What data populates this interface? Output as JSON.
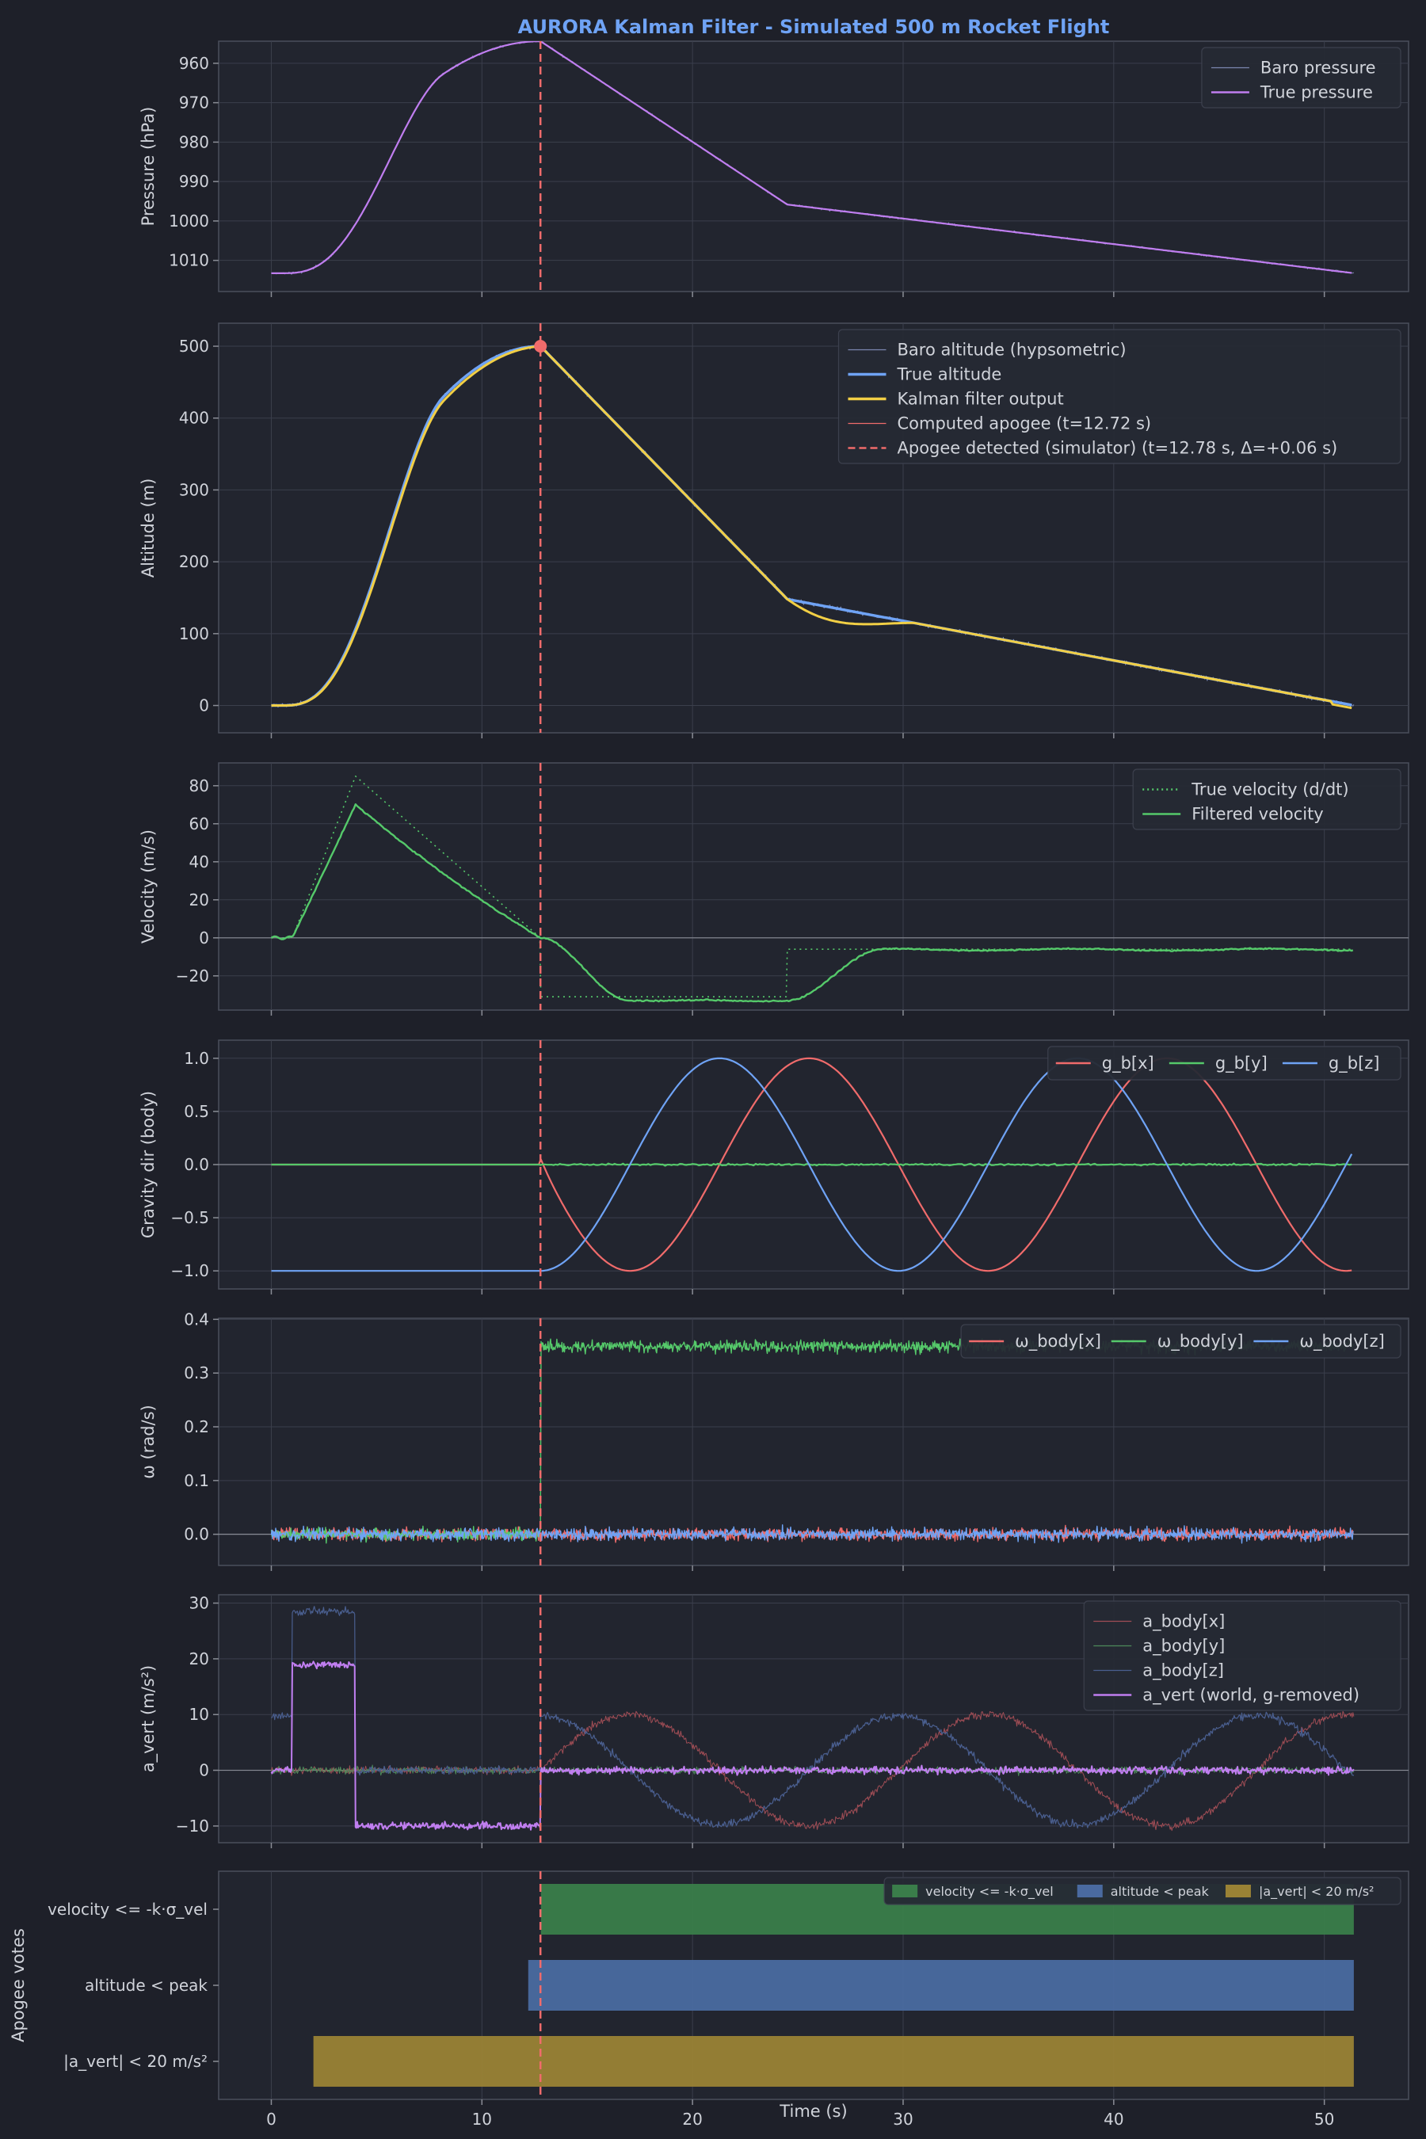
{
  "colors": {
    "bg": "#1e2029",
    "panel": "#242833",
    "grid": "#3b3f4c",
    "spine": "#4a4f5c",
    "text": "#d0d3da",
    "title": "#6fa3f5",
    "apogee": "#f06b6b"
  },
  "chart_data": {
    "title": "AURORA Kalman Filter - Simulated 500 m Rocket Flight",
    "xlabel": "Time (s)",
    "xlim": [
      -2.5,
      54
    ],
    "xticks": [
      0,
      10,
      20,
      30,
      40,
      50
    ],
    "apogee_t": 12.78,
    "panels": [
      {
        "id": "pressure",
        "type": "line",
        "ylabel": "Pressure (hPa)",
        "ylim": [
          1017.9,
          954.4
        ],
        "yticks": [
          960,
          970,
          980,
          990,
          1000,
          1010
        ],
        "legend": [
          {
            "label": "Baro pressure",
            "color": "#7b87b0",
            "style": "thin"
          },
          {
            "label": "True pressure",
            "color": "#c07ef0",
            "style": "solid"
          }
        ]
      },
      {
        "id": "altitude",
        "type": "line",
        "ylabel": "Altitude (m)",
        "ylim": [
          -38,
          532
        ],
        "yticks": [
          0,
          100,
          200,
          300,
          400,
          500
        ],
        "legend": [
          {
            "label": "Baro altitude (hypsometric)",
            "color": "#7b87b0",
            "style": "thin"
          },
          {
            "label": "True altitude",
            "color": "#6fa3f5",
            "style": "thick"
          },
          {
            "label": "Kalman filter output",
            "color": "#f2cf45",
            "style": "thick"
          },
          {
            "label": "Computed apogee (t=12.72 s)",
            "color": "#f06b6b",
            "style": "thin"
          },
          {
            "label": "Apogee detected (simulator) (t=12.78 s, Δ=+0.06 s)",
            "color": "#f06b6b",
            "style": "dash"
          }
        ]
      },
      {
        "id": "velocity",
        "type": "line",
        "ylabel": "Velocity (m/s)",
        "ylim": [
          -38,
          92
        ],
        "yticks": [
          -20,
          0,
          20,
          40,
          60,
          80
        ],
        "legend": [
          {
            "label": "True velocity (d/dt)",
            "color": "#55c96a",
            "style": "dot"
          },
          {
            "label": "Filtered velocity",
            "color": "#55c96a",
            "style": "solid"
          }
        ]
      },
      {
        "id": "gravity",
        "type": "line",
        "ylabel": "Gravity dir (body)",
        "ylim": [
          -1.17,
          1.17
        ],
        "yticks": [
          -1.0,
          -0.5,
          0.0,
          0.5,
          1.0
        ],
        "legend": [
          {
            "label": "g_b[x]",
            "color": "#f06b6b",
            "style": "solid"
          },
          {
            "label": "g_b[y]",
            "color": "#55c96a",
            "style": "solid"
          },
          {
            "label": "g_b[z]",
            "color": "#6fa3f5",
            "style": "solid"
          }
        ]
      },
      {
        "id": "omega",
        "type": "line",
        "ylabel": "ω (rad/s)",
        "ylim": [
          -0.058,
          0.402
        ],
        "yticks": [
          0.0,
          0.1,
          0.2,
          0.3,
          0.4
        ],
        "legend": [
          {
            "label": "ω_body[x]",
            "color": "#f06b6b",
            "style": "solid"
          },
          {
            "label": "ω_body[y]",
            "color": "#55c96a",
            "style": "solid"
          },
          {
            "label": "ω_body[z]",
            "color": "#6fa3f5",
            "style": "solid"
          }
        ]
      },
      {
        "id": "accel",
        "type": "line",
        "ylabel": "a_vert (m/s²)",
        "ylim": [
          -13,
          31.5
        ],
        "yticks": [
          -10,
          0,
          10,
          20,
          30
        ],
        "legend": [
          {
            "label": "a_body[x]",
            "color": "#a04d55",
            "style": "thin"
          },
          {
            "label": "a_body[y]",
            "color": "#4d8a5a",
            "style": "thin"
          },
          {
            "label": "a_body[z]",
            "color": "#4a5f90",
            "style": "thin"
          },
          {
            "label": "a_vert (world, g-removed)",
            "color": "#c07ef0",
            "style": "solid"
          }
        ]
      },
      {
        "id": "votes",
        "type": "bar",
        "ylabel": "Apogee votes",
        "categories": [
          "velocity <= -k·σ_vel",
          "altitude < peak",
          "|a_vert| < 20 m/s²"
        ],
        "bars": [
          {
            "start": 12.8,
            "end": 51.4,
            "color": "#3a7d4a"
          },
          {
            "start": 12.2,
            "end": 51.4,
            "color": "#4a6aa0"
          },
          {
            "start": 2.0,
            "end": 51.4,
            "color": "#9a8235"
          }
        ],
        "legend": [
          {
            "label": "velocity <= -k·σ_vel",
            "color": "#3a7d4a",
            "style": "patch"
          },
          {
            "label": "altitude < peak",
            "color": "#4a6aa0",
            "style": "patch"
          },
          {
            "label": "|a_vert| < 20 m/s²",
            "color": "#9a8235",
            "style": "patch"
          }
        ]
      }
    ]
  }
}
